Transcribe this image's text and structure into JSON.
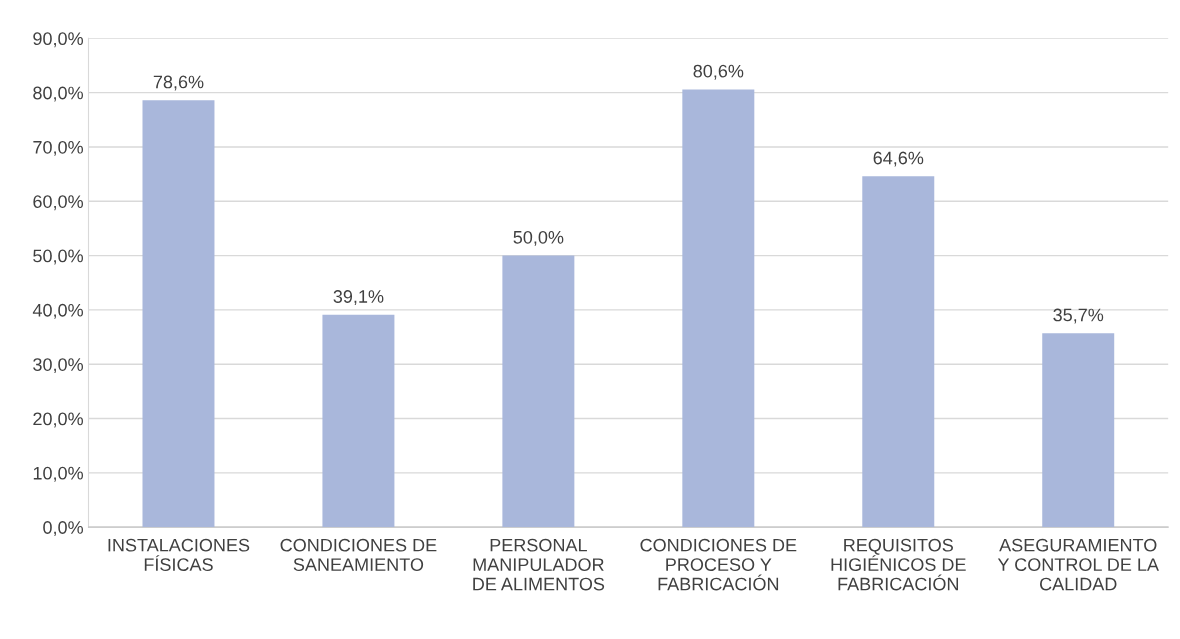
{
  "chart_data": {
    "type": "bar",
    "categories": [
      "INSTALACIONES\nFÍSICAS",
      "CONDICIONES DE\nSANEAMIENTO",
      "PERSONAL\nMANIPULADOR\nDE ALIMENTOS",
      "CONDICIONES DE\nPROCESO Y\nFABRICACIÓN",
      "REQUISITOS\nHIGIÉNICOS DE\nFABRICACIÓN",
      "ASEGURAMIENTO\nY CONTROL DE LA\nCALIDAD"
    ],
    "values": [
      78.6,
      39.1,
      50.0,
      80.6,
      64.6,
      35.7
    ],
    "value_labels": [
      "78,6%",
      "39,1%",
      "50,0%",
      "80,6%",
      "64,6%",
      "35,7%"
    ],
    "color": "#a9b7db",
    "ylim": [
      0,
      90
    ],
    "yticks": [
      {
        "value": 0,
        "label": "0,0%"
      },
      {
        "value": 10,
        "label": "10,0%"
      },
      {
        "value": 20,
        "label": "20,0%"
      },
      {
        "value": 30,
        "label": "30,0%"
      },
      {
        "value": 40,
        "label": "40,0%"
      },
      {
        "value": 50,
        "label": "50,0%"
      },
      {
        "value": 60,
        "label": "60,0%"
      },
      {
        "value": 70,
        "label": "70,0%"
      },
      {
        "value": 80,
        "label": "80,0%"
      },
      {
        "value": 90,
        "label": "90,0%"
      }
    ],
    "grid": "y",
    "legend": false
  }
}
